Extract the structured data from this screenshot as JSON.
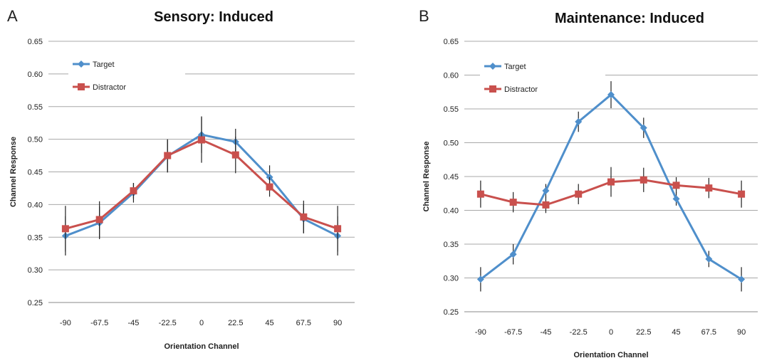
{
  "chart_data": [
    {
      "type": "line",
      "panel_label": "A",
      "title": "Sensory: Induced",
      "xlabel": "Orientation Channel",
      "ylabel": "Channel Response",
      "categories": [
        "-90",
        "-67.5",
        "-45",
        "-22.5",
        "0",
        "22.5",
        "45",
        "67.5",
        "90"
      ],
      "ylim": [
        0.25,
        0.65
      ],
      "yticks": [
        "0.25",
        "0.30",
        "0.35",
        "0.40",
        "0.45",
        "0.50",
        "0.55",
        "0.60",
        "0.65"
      ],
      "grid": true,
      "legend_position": "top-left",
      "series": [
        {
          "name": "Target",
          "color": "#4f8fcb",
          "marker": "diamond",
          "values": [
            0.352,
            0.372,
            0.418,
            0.474,
            0.507,
            0.496,
            0.442,
            0.378,
            0.352
          ],
          "error": [
            0.03,
            0.025,
            0.015,
            0.025,
            0.028,
            0.02,
            0.018,
            0.022,
            0.03
          ]
        },
        {
          "name": "Distractor",
          "color": "#c9504d",
          "marker": "square",
          "values": [
            0.363,
            0.377,
            0.421,
            0.475,
            0.499,
            0.476,
            0.427,
            0.381,
            0.363
          ],
          "error": [
            0.035,
            0.028,
            0.012,
            0.025,
            0.035,
            0.028,
            0.015,
            0.025,
            0.035
          ]
        }
      ]
    },
    {
      "type": "line",
      "panel_label": "B",
      "title": "Maintenance: Induced",
      "xlabel": "Orientation Channel",
      "ylabel": "Channel Response",
      "categories": [
        "-90",
        "-67.5",
        "-45",
        "-22.5",
        "0",
        "22.5",
        "45",
        "67.5",
        "90"
      ],
      "ylim": [
        0.25,
        0.65
      ],
      "yticks": [
        "0.25",
        "0.30",
        "0.35",
        "0.40",
        "0.45",
        "0.50",
        "0.55",
        "0.60",
        "0.65"
      ],
      "grid": true,
      "legend_position": "top-left",
      "series": [
        {
          "name": "Target",
          "color": "#4f8fcb",
          "marker": "diamond",
          "values": [
            0.298,
            0.335,
            0.429,
            0.531,
            0.571,
            0.522,
            0.417,
            0.328,
            0.298
          ],
          "error": [
            0.018,
            0.015,
            0.01,
            0.015,
            0.02,
            0.015,
            0.01,
            0.012,
            0.018
          ]
        },
        {
          "name": "Distractor",
          "color": "#c9504d",
          "marker": "square",
          "values": [
            0.424,
            0.412,
            0.408,
            0.424,
            0.442,
            0.445,
            0.437,
            0.433,
            0.424
          ],
          "error": [
            0.02,
            0.015,
            0.012,
            0.015,
            0.022,
            0.018,
            0.012,
            0.015,
            0.02
          ]
        }
      ]
    }
  ]
}
